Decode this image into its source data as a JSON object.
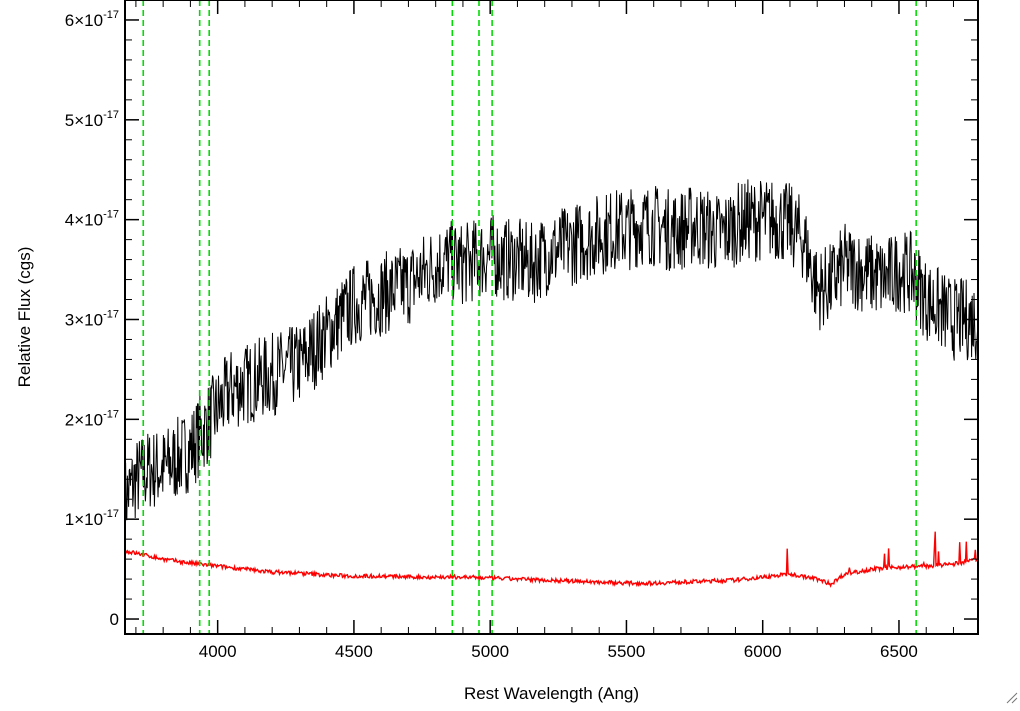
{
  "chart_data": {
    "type": "line",
    "xlabel": "Rest Wavelength (Ang)",
    "ylabel": "Relative Flux (cgs)",
    "xlim": [
      3660,
      6790
    ],
    "ylim": [
      -0.15,
      6.2
    ],
    "y_unit_exponent": -17,
    "x_ticks": [
      {
        "value": 4000,
        "label": "4000"
      },
      {
        "value": 4500,
        "label": "4500"
      },
      {
        "value": 5000,
        "label": "5000"
      },
      {
        "value": 5500,
        "label": "5500"
      },
      {
        "value": 6000,
        "label": "6000"
      },
      {
        "value": 6500,
        "label": "6500"
      }
    ],
    "y_ticks": [
      {
        "value": 0,
        "mantissa": "0",
        "exponent": ""
      },
      {
        "value": 1,
        "mantissa": "1×10",
        "exponent": "-17"
      },
      {
        "value": 2,
        "mantissa": "2×10",
        "exponent": "-17"
      },
      {
        "value": 3,
        "mantissa": "3×10",
        "exponent": "-17"
      },
      {
        "value": 4,
        "mantissa": "4×10",
        "exponent": "-17"
      },
      {
        "value": 5,
        "mantissa": "5×10",
        "exponent": "-17"
      },
      {
        "value": 6,
        "mantissa": "6×10",
        "exponent": "-17"
      }
    ],
    "grid": false,
    "series": [
      {
        "color": "#000000",
        "x": [
          3660,
          3700,
          3750,
          3800,
          3850,
          3900,
          3950,
          4000,
          4050,
          4100,
          4150,
          4200,
          4250,
          4300,
          4350,
          4400,
          4450,
          4500,
          4550,
          4600,
          4650,
          4700,
          4750,
          4800,
          4850,
          4900,
          4950,
          5000,
          5050,
          5100,
          5150,
          5200,
          5250,
          5300,
          5350,
          5400,
          5450,
          5500,
          5550,
          5600,
          5650,
          5700,
          5750,
          5800,
          5850,
          5900,
          5950,
          6000,
          6050,
          6100,
          6150,
          6200,
          6250,
          6300,
          6350,
          6400,
          6450,
          6500,
          6550,
          6600,
          6650,
          6700,
          6750,
          6790
        ],
        "values": [
          1.2,
          1.4,
          1.5,
          1.5,
          1.6,
          1.7,
          1.9,
          2.1,
          2.3,
          2.35,
          2.4,
          2.45,
          2.5,
          2.55,
          2.7,
          2.85,
          3.0,
          3.15,
          3.2,
          3.25,
          3.3,
          3.35,
          3.45,
          3.55,
          3.6,
          3.55,
          3.6,
          3.65,
          3.6,
          3.6,
          3.55,
          3.65,
          3.7,
          3.75,
          3.8,
          3.85,
          3.9,
          3.9,
          3.95,
          3.95,
          3.9,
          3.9,
          3.95,
          3.9,
          3.85,
          3.95,
          4.0,
          4.0,
          4.0,
          3.95,
          3.8,
          3.3,
          3.35,
          3.55,
          3.5,
          3.45,
          3.4,
          3.5,
          3.45,
          3.2,
          3.1,
          3.0,
          3.0,
          3.0
        ]
      },
      {
        "color": "#ff0000",
        "x": [
          3660,
          3700,
          3800,
          3900,
          4000,
          4100,
          4200,
          4300,
          4400,
          4500,
          4600,
          4700,
          4800,
          4900,
          5000,
          5100,
          5200,
          5300,
          5400,
          5500,
          5600,
          5700,
          5800,
          5900,
          6000,
          6100,
          6200,
          6250,
          6300,
          6400,
          6500,
          6600,
          6700,
          6790
        ],
        "values": [
          0.68,
          0.66,
          0.6,
          0.56,
          0.53,
          0.5,
          0.47,
          0.46,
          0.44,
          0.43,
          0.43,
          0.42,
          0.42,
          0.42,
          0.41,
          0.4,
          0.39,
          0.38,
          0.37,
          0.36,
          0.36,
          0.37,
          0.38,
          0.39,
          0.42,
          0.45,
          0.4,
          0.35,
          0.45,
          0.5,
          0.52,
          0.53,
          0.55,
          0.6
        ]
      }
    ],
    "vertical_markers": {
      "color": "#00dd00",
      "style": "dashed",
      "x": [
        3727,
        3934,
        3969,
        4861,
        4959,
        5007,
        6563
      ]
    }
  }
}
